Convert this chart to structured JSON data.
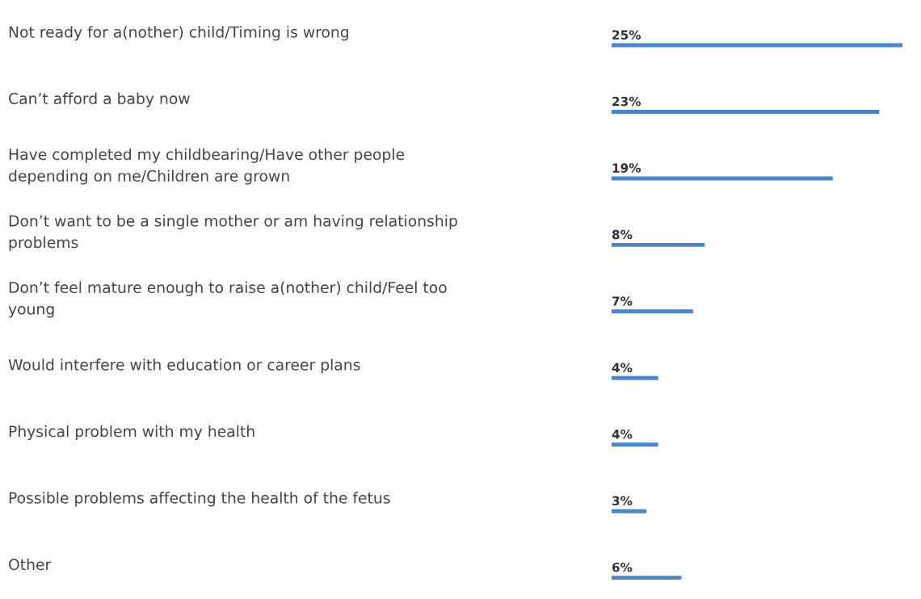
{
  "chart_data": {
    "type": "bar",
    "orientation": "horizontal",
    "categories": [
      "Not ready for a(nother) child/Timing is wrong",
      "Can’t afford a baby now",
      "Have completed my childbearing/Have other people\ndepending on me/Children are grown",
      "Don’t want to be a single mother or am having relationship\nproblems",
      "Don’t feel mature enough to raise a(nother) child/Feel too\nyoung",
      "Would interfere with education or career plans",
      "Physical problem with my health",
      "Possible problems affecting the health of the fetus",
      "Other"
    ],
    "values": [
      25,
      23,
      19,
      8,
      7,
      4,
      4,
      3,
      6
    ],
    "value_labels": [
      "25%",
      "23%",
      "19%",
      "8%",
      "7%",
      "4%",
      "4%",
      "3%",
      "6%"
    ],
    "color": "#4a86c8"
  }
}
